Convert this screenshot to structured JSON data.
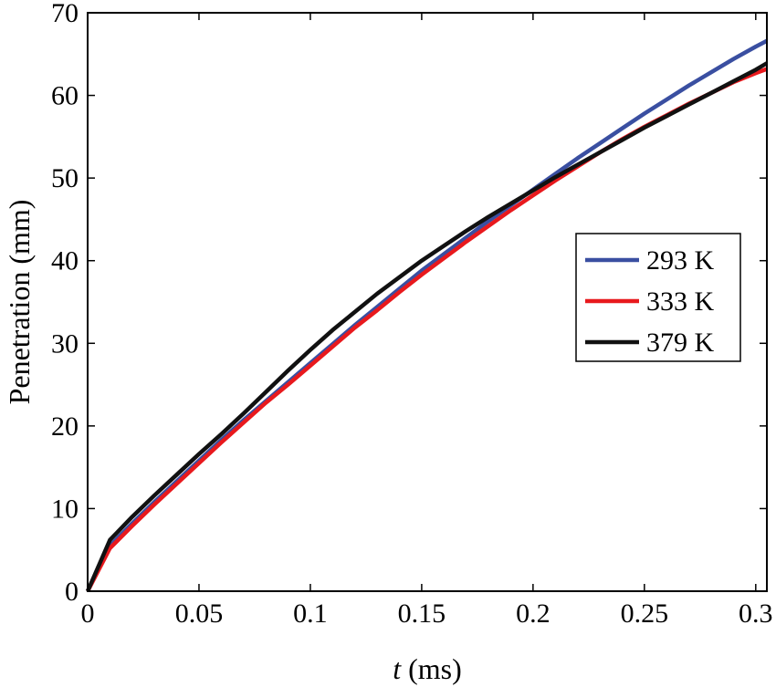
{
  "chart_data": {
    "type": "line",
    "title": "",
    "xlabel_italic": "t",
    "xlabel_rest": " (ms)",
    "ylabel": "Penetration (mm)",
    "xlim": [
      0,
      0.305
    ],
    "ylim": [
      0,
      70
    ],
    "xticks": [
      0,
      0.05,
      0.1,
      0.15,
      0.2,
      0.25,
      0.3
    ],
    "xtick_labels": [
      "0",
      "0.05",
      "0.1",
      "0.15",
      "0.2",
      "0.25",
      "0.3"
    ],
    "yticks": [
      0,
      10,
      20,
      30,
      40,
      50,
      60,
      70
    ],
    "ytick_labels": [
      "0",
      "10",
      "20",
      "30",
      "40",
      "50",
      "60",
      "70"
    ],
    "grid": false,
    "legend_position": "center-right",
    "series": [
      {
        "name": "293 K",
        "color": "#3a4fa1",
        "x": [
          0,
          0.01,
          0.02,
          0.03,
          0.04,
          0.05,
          0.06,
          0.07,
          0.08,
          0.09,
          0.1,
          0.11,
          0.12,
          0.13,
          0.14,
          0.15,
          0.16,
          0.17,
          0.18,
          0.19,
          0.2,
          0.21,
          0.22,
          0.23,
          0.24,
          0.25,
          0.26,
          0.27,
          0.28,
          0.29,
          0.3,
          0.305
        ],
        "y": [
          0,
          5.5,
          8.2,
          10.8,
          13.3,
          15.8,
          18.3,
          20.7,
          23.0,
          25.3,
          27.6,
          29.9,
          32.2,
          34.4,
          36.6,
          38.8,
          40.8,
          42.8,
          44.8,
          46.7,
          48.6,
          50.5,
          52.4,
          54.2,
          56.0,
          57.8,
          59.5,
          61.2,
          62.8,
          64.4,
          65.9,
          66.6
        ]
      },
      {
        "name": "333 K",
        "color": "#e8191d",
        "x": [
          0,
          0.01,
          0.02,
          0.03,
          0.04,
          0.05,
          0.06,
          0.07,
          0.08,
          0.09,
          0.1,
          0.11,
          0.12,
          0.13,
          0.14,
          0.15,
          0.16,
          0.17,
          0.18,
          0.19,
          0.2,
          0.21,
          0.22,
          0.23,
          0.24,
          0.25,
          0.26,
          0.27,
          0.28,
          0.29,
          0.3,
          0.305
        ],
        "y": [
          0,
          5.2,
          7.9,
          10.5,
          13.0,
          15.5,
          18.0,
          20.4,
          22.8,
          25.0,
          27.3,
          29.6,
          31.9,
          34.0,
          36.2,
          38.3,
          40.3,
          42.3,
          44.2,
          46.1,
          47.9,
          49.7,
          51.4,
          53.1,
          54.7,
          56.2,
          57.6,
          59.0,
          60.3,
          61.6,
          62.7,
          63.2
        ]
      },
      {
        "name": "379 K",
        "color": "#111111",
        "x": [
          0,
          0.01,
          0.02,
          0.03,
          0.04,
          0.05,
          0.06,
          0.07,
          0.08,
          0.09,
          0.1,
          0.11,
          0.12,
          0.13,
          0.14,
          0.15,
          0.16,
          0.17,
          0.18,
          0.19,
          0.2,
          0.21,
          0.22,
          0.23,
          0.24,
          0.25,
          0.26,
          0.27,
          0.28,
          0.29,
          0.3,
          0.305
        ],
        "y": [
          0,
          6.2,
          9.0,
          11.6,
          14.1,
          16.6,
          19.0,
          21.5,
          24.1,
          26.7,
          29.2,
          31.6,
          33.8,
          36.0,
          38.0,
          40.0,
          41.8,
          43.6,
          45.3,
          46.9,
          48.5,
          50.1,
          51.6,
          53.1,
          54.6,
          56.1,
          57.5,
          58.9,
          60.3,
          61.7,
          63.1,
          63.9
        ]
      }
    ]
  }
}
